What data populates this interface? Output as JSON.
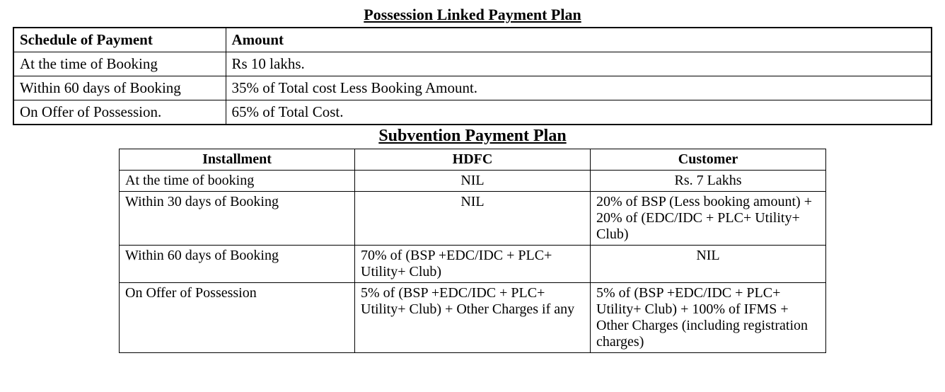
{
  "plan1": {
    "title": "Possession Linked Payment Plan",
    "headers": {
      "schedule": "Schedule  of Payment",
      "amount": "Amount"
    },
    "rows": [
      {
        "schedule": "At the time of Booking",
        "amount": "Rs 10 lakhs."
      },
      {
        "schedule": "Within 60 days of Booking",
        "amount": "35% of Total cost Less Booking Amount."
      },
      {
        "schedule": "On Offer of Possession.",
        "amount": "65% of Total Cost."
      }
    ]
  },
  "plan2": {
    "title": "Subvention Payment Plan",
    "headers": {
      "installment": "Installment",
      "hdfc": "HDFC",
      "customer": "Customer"
    },
    "rows": [
      {
        "installment": "At the time of booking",
        "hdfc": "NIL",
        "hdfc_align": "center",
        "customer": "Rs. 7 Lakhs",
        "customer_align": "center"
      },
      {
        "installment": "Within 30 days of Booking",
        "hdfc": "NIL",
        "hdfc_align": "center",
        "customer": "20% of BSP (Less booking amount) + 20% of (EDC/IDC + PLC+ Utility+ Club)",
        "customer_align": "left"
      },
      {
        "installment": "Within 60 days of Booking",
        "hdfc": "70% of (BSP +EDC/IDC + PLC+ Utility+ Club)",
        "hdfc_align": "left",
        "customer": "NIL",
        "customer_align": "center"
      },
      {
        "installment": "On Offer of Possession",
        "hdfc": "5% of (BSP +EDC/IDC + PLC+ Utility+ Club) + Other Charges if any",
        "hdfc_align": "left",
        "customer": "5% of (BSP +EDC/IDC + PLC+ Utility+ Club) + 100% of IFMS + Other Charges (including registration charges)",
        "customer_align": "left"
      }
    ]
  }
}
